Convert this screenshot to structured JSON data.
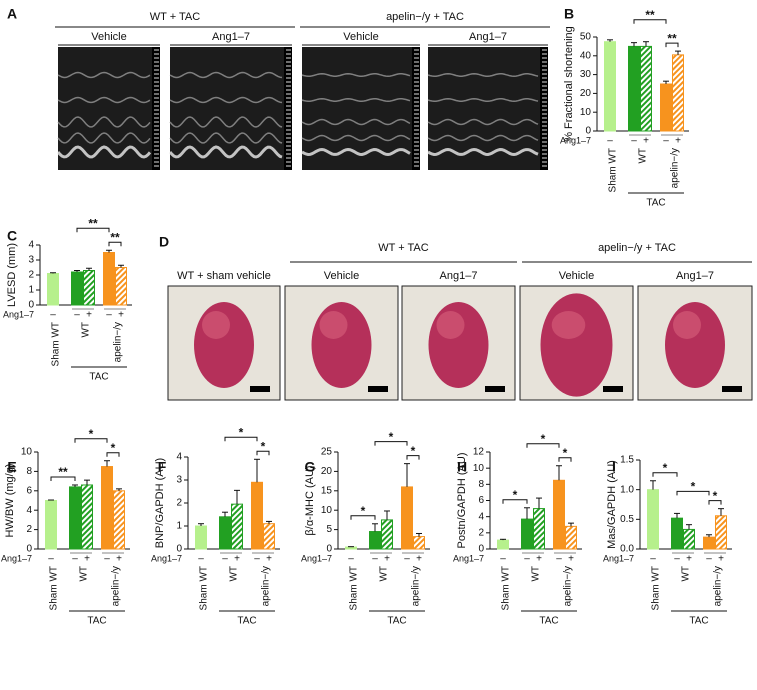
{
  "panel_a": {
    "letter": "A",
    "groups": [
      {
        "title": "WT + TAC",
        "columns": [
          "Vehicle",
          "Ang1–7"
        ]
      },
      {
        "title": "apelin−/y + TAC",
        "columns": [
          "Vehicle",
          "Ang1–7"
        ]
      }
    ]
  },
  "panel_d": {
    "letter": "D",
    "single": "WT + sham vehicle",
    "groups": [
      {
        "title": "WT + TAC",
        "columns": [
          "Vehicle",
          "Ang1–7"
        ]
      },
      {
        "title": "apelin−/y + TAC",
        "columns": [
          "Vehicle",
          "Ang1–7"
        ]
      }
    ]
  },
  "chart_data": [
    {
      "type": "bar",
      "panel": "B",
      "ylabel": "% Fractional shortening",
      "values": [
        47.5,
        45,
        45,
        25,
        40.5
      ],
      "errors": [
        1,
        2,
        2.5,
        1.5,
        2
      ],
      "colors": [
        "#b6f08c",
        "#22a022",
        "#22a022",
        "#f7931e",
        "#f7931e"
      ],
      "hatched": [
        false,
        false,
        true,
        false,
        true
      ],
      "ylim": [
        0,
        50
      ],
      "yticks": [
        0,
        10,
        20,
        30,
        40,
        50
      ],
      "treatment_label": "Ang1–7",
      "treatment": [
        "–",
        "–",
        "+",
        "–",
        "+"
      ],
      "groups": [
        "Sham WT",
        "WT",
        "apelin−/y"
      ],
      "group_label": "TAC",
      "significance": [
        "**",
        "**"
      ]
    },
    {
      "type": "bar",
      "panel": "C",
      "ylabel": "LVESD (mm)",
      "values": [
        2.1,
        2.2,
        2.3,
        3.5,
        2.5
      ],
      "errors": [
        0.05,
        0.1,
        0.15,
        0.15,
        0.15
      ],
      "colors": [
        "#b6f08c",
        "#22a022",
        "#22a022",
        "#f7931e",
        "#f7931e"
      ],
      "hatched": [
        false,
        false,
        true,
        false,
        true
      ],
      "ylim": [
        0,
        4
      ],
      "yticks": [
        0,
        1,
        2,
        3,
        4
      ],
      "treatment_label": "Ang1–7",
      "treatment": [
        "–",
        "–",
        "+",
        "–",
        "+"
      ],
      "groups": [
        "Sham WT",
        "WT",
        "apelin−/y"
      ],
      "group_label": "TAC",
      "significance": [
        "**",
        "**"
      ]
    },
    {
      "type": "bar",
      "panel": "E",
      "ylabel": "HW/BW (mg/g)",
      "values": [
        5.0,
        6.4,
        6.6,
        8.5,
        6.0
      ],
      "errors": [
        0.05,
        0.2,
        0.5,
        0.6,
        0.2
      ],
      "colors": [
        "#b6f08c",
        "#22a022",
        "#22a022",
        "#f7931e",
        "#f7931e"
      ],
      "hatched": [
        false,
        false,
        true,
        false,
        true
      ],
      "ylim": [
        0,
        10
      ],
      "yticks": [
        0,
        2,
        4,
        6,
        8,
        10
      ],
      "treatment_label": "Ang1–7",
      "treatment": [
        "–",
        "–",
        "+",
        "–",
        "+"
      ],
      "groups": [
        "Sham WT",
        "WT",
        "apelin−/y"
      ],
      "group_label": "TAC",
      "significance": [
        "**",
        "*",
        "*"
      ]
    },
    {
      "type": "bar",
      "panel": "F",
      "ylabel": "BNP/GAPDH (AU)",
      "values": [
        1.0,
        1.4,
        1.95,
        2.9,
        1.1
      ],
      "errors": [
        0.1,
        0.2,
        0.6,
        1.0,
        0.1
      ],
      "colors": [
        "#b6f08c",
        "#22a022",
        "#22a022",
        "#f7931e",
        "#f7931e"
      ],
      "hatched": [
        false,
        false,
        true,
        false,
        true
      ],
      "ylim": [
        0,
        4
      ],
      "yticks": [
        0,
        1,
        2,
        3,
        4
      ],
      "treatment_label": "Ang1–7",
      "treatment": [
        "–",
        "–",
        "+",
        "–",
        "+"
      ],
      "groups": [
        "Sham WT",
        "WT",
        "apelin−/y"
      ],
      "group_label": "TAC",
      "significance": [
        "*",
        "*"
      ]
    },
    {
      "type": "bar",
      "panel": "G",
      "ylabel": "β/α-MHC (AU)",
      "values": [
        0.5,
        4.5,
        7.5,
        16,
        3.2
      ],
      "errors": [
        0.1,
        2,
        2.3,
        6,
        0.8
      ],
      "colors": [
        "#b6f08c",
        "#22a022",
        "#22a022",
        "#f7931e",
        "#f7931e"
      ],
      "hatched": [
        false,
        false,
        true,
        false,
        true
      ],
      "ylim": [
        0,
        25
      ],
      "yticks": [
        0,
        5,
        10,
        15,
        20,
        25
      ],
      "treatment_label": "Ang1–7",
      "treatment": [
        "–",
        "–",
        "+",
        "–",
        "+"
      ],
      "groups": [
        "Sham WT",
        "WT",
        "apelin−/y"
      ],
      "group_label": "TAC",
      "significance": [
        "*",
        "*",
        "*"
      ]
    },
    {
      "type": "bar",
      "panel": "H",
      "ylabel": "Postn/GAPDH (AU)",
      "values": [
        1.1,
        3.7,
        5,
        8.5,
        2.8
      ],
      "errors": [
        0.1,
        1.4,
        1.3,
        1.8,
        0.4
      ],
      "colors": [
        "#b6f08c",
        "#22a022",
        "#22a022",
        "#f7931e",
        "#f7931e"
      ],
      "hatched": [
        false,
        false,
        true,
        false,
        true
      ],
      "ylim": [
        0,
        12
      ],
      "yticks": [
        0,
        2,
        4,
        6,
        8,
        10,
        12
      ],
      "treatment_label": "Ang1–7",
      "treatment": [
        "–",
        "–",
        "+",
        "–",
        "+"
      ],
      "groups": [
        "Sham WT",
        "WT",
        "apelin−/y"
      ],
      "group_label": "TAC",
      "significance": [
        "*",
        "*",
        "*"
      ]
    },
    {
      "type": "bar",
      "panel": "I",
      "ylabel": "Mas/GAPDH (AU)",
      "values": [
        1.0,
        0.52,
        0.33,
        0.2,
        0.56
      ],
      "errors": [
        0.15,
        0.08,
        0.08,
        0.04,
        0.12
      ],
      "colors": [
        "#b6f08c",
        "#22a022",
        "#22a022",
        "#f7931e",
        "#f7931e"
      ],
      "hatched": [
        false,
        false,
        true,
        false,
        true
      ],
      "ylim": [
        0,
        1.5
      ],
      "yticks": [
        {
          "value": 0,
          "label": "0.0"
        },
        0.5,
        {
          "value": 1,
          "label": "1.0"
        },
        1.5
      ],
      "treatment_label": "Ang1–7",
      "treatment": [
        "–",
        "–",
        "+",
        "–",
        "+"
      ],
      "groups": [
        "Sham WT",
        "WT",
        "apelin−/y"
      ],
      "group_label": "TAC",
      "significance": [
        "*",
        "*",
        "*"
      ]
    }
  ]
}
